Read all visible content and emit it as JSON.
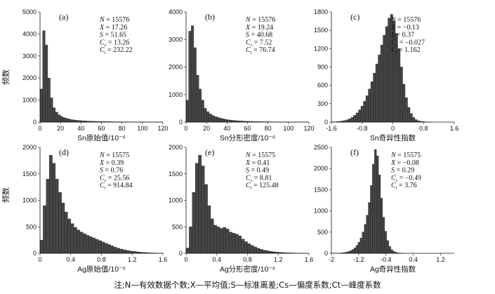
{
  "figure": {
    "ylabel": "频数",
    "note": "注;N—有效数据个数;X—平均值;S—标准离差;Cs—偏度系数;Ct—峰度系数"
  },
  "chart_data": [
    {
      "type": "bar",
      "panel": "(a)",
      "xlabel": "Sn原始值/10⁻⁶",
      "xlim": [
        0,
        120
      ],
      "xticks": [
        0,
        20,
        40,
        60,
        80,
        100,
        120
      ],
      "xticklabels": [
        "0",
        "20",
        "40",
        "60",
        "80",
        "100",
        "120"
      ],
      "ylim": [
        0,
        5000
      ],
      "yticks": [
        0,
        1000,
        2000,
        3000,
        4000,
        5000
      ],
      "bin_width": 2.5,
      "values": [
        1500,
        4150,
        3500,
        2000,
        1100,
        650,
        450,
        330,
        250,
        200,
        165,
        135,
        110,
        95,
        80,
        70,
        60,
        55,
        48,
        42,
        38,
        34,
        30,
        27,
        24,
        22,
        20,
        18,
        16,
        15,
        14,
        13,
        12,
        11,
        10,
        9,
        8,
        8,
        7,
        7,
        6,
        6,
        5,
        5,
        5,
        4,
        4,
        4
      ],
      "stats": {
        "N": "15576",
        "X": "17.26",
        "S": "51.65",
        "Cs": "13.26",
        "Ct": "232.22"
      }
    },
    {
      "type": "bar",
      "panel": "(b)",
      "xlabel": "Sn分形密度/10⁻⁶",
      "xlim": [
        0,
        120
      ],
      "xticks": [
        0,
        20,
        40,
        60,
        80,
        100,
        120
      ],
      "xticklabels": [
        "0",
        "20",
        "40",
        "60",
        "80",
        "100",
        "120"
      ],
      "ylim": [
        0,
        4000
      ],
      "yticks": [
        0,
        1000,
        2000,
        3000,
        4000
      ],
      "bin_width": 2.5,
      "values": [
        800,
        3300,
        3500,
        2700,
        1700,
        1200,
        800,
        500,
        380,
        300,
        240,
        200,
        170,
        140,
        120,
        100,
        85,
        72,
        62,
        54,
        47,
        41,
        36,
        32,
        28,
        25,
        22,
        20,
        18,
        16,
        14,
        13,
        12,
        11,
        10,
        9,
        8,
        8,
        7,
        7,
        6,
        6,
        5,
        5,
        5,
        4,
        4,
        4
      ],
      "stats": {
        "N": "15576",
        "X": "19.24",
        "S": "40.68",
        "Cs": "7.52",
        "Ct": "76.74"
      }
    },
    {
      "type": "bar",
      "panel": "(c)",
      "xlabel": "Sn奇异性指数",
      "xlim": [
        -1.6,
        1.6
      ],
      "xticks": [
        -1.6,
        -0.8,
        0,
        0.8,
        1.6
      ],
      "xticklabels": [
        "-1.6",
        "-0.8",
        "0",
        "0.8",
        "1.6"
      ],
      "ylim": [
        0,
        1800
      ],
      "yticks": [
        0,
        300,
        600,
        900,
        1200,
        1500,
        1800
      ],
      "bin_width": 0.064,
      "values": [
        3,
        5,
        8,
        12,
        18,
        26,
        38,
        55,
        80,
        110,
        150,
        200,
        260,
        340,
        430,
        540,
        660,
        800,
        950,
        1100,
        1260,
        1420,
        1560,
        1700,
        1760,
        1650,
        1450,
        1200,
        900,
        620,
        400,
        240,
        140,
        75,
        40,
        22,
        12,
        7,
        4,
        3,
        2
      ],
      "stats": {
        "N": "15576",
        "X": "−0.13",
        "S": "0.37",
        "Cs": "−0.027",
        "Ct": "1.162"
      }
    },
    {
      "type": "bar",
      "panel": "(d)",
      "xlabel": "Ag原始值/10⁻⁶",
      "xlim": [
        0,
        1.6
      ],
      "xticks": [
        0,
        0.4,
        0.8,
        1.2,
        1.6
      ],
      "xticklabels": [
        "0",
        "0.4",
        "0.8",
        "1.2",
        "1.6"
      ],
      "ylim": [
        0,
        2000
      ],
      "yticks": [
        0,
        500,
        1000,
        1500,
        2000
      ],
      "bin_width": 0.04,
      "values": [
        250,
        900,
        1400,
        1850,
        1700,
        1400,
        1150,
        950,
        780,
        650,
        560,
        490,
        440,
        400,
        370,
        340,
        315,
        290,
        265,
        240,
        215,
        190,
        165,
        140,
        115,
        95,
        80,
        66,
        54,
        44,
        36,
        29,
        23,
        18,
        14,
        10,
        8,
        6,
        4,
        3
      ],
      "stats": {
        "N": "15575",
        "X": "0.39",
        "S": "0.76",
        "Cs": "25.56",
        "Ct": "914.84"
      }
    },
    {
      "type": "bar",
      "panel": "(e)",
      "xlabel": "Ag分形密度/10⁻⁶",
      "xlim": [
        0,
        1.6
      ],
      "xticks": [
        0,
        0.4,
        0.8,
        1.2,
        1.6
      ],
      "xticklabels": [
        "0",
        "0.4",
        "0.8",
        "1.2",
        "1.6"
      ],
      "ylim": [
        0,
        2000
      ],
      "yticks": [
        0,
        500,
        1000,
        1500,
        2000
      ],
      "bin_width": 0.04,
      "values": [
        100,
        500,
        1150,
        1700,
        1850,
        1650,
        1300,
        900,
        650,
        530,
        500,
        470,
        490,
        460,
        400,
        380,
        360,
        330,
        270,
        220,
        180,
        150,
        120,
        95,
        75,
        60,
        48,
        38,
        30,
        24,
        19,
        15,
        12,
        9,
        7,
        6,
        5,
        4,
        3,
        2
      ],
      "stats": {
        "N": "15575",
        "X": "0.41",
        "S": "0.49",
        "Cs": "8.81",
        "Ct": "125.48"
      }
    },
    {
      "type": "bar",
      "panel": "(f)",
      "xlabel": "Ag奇异性指数",
      "xlim": [
        -2.0,
        1.6
      ],
      "xticks": [
        -2.0,
        -1.2,
        -0.4,
        0.4,
        1.2
      ],
      "xticklabels": [
        "-2",
        "-1.2",
        "-0.4",
        "0.4",
        "1.2"
      ],
      "ylim": [
        0,
        2500
      ],
      "yticks": [
        0,
        500,
        1000,
        1500,
        2000,
        2500
      ],
      "bin_width": 0.06,
      "values": [
        1,
        2,
        3,
        5,
        8,
        12,
        18,
        28,
        42,
        62,
        90,
        130,
        185,
        260,
        360,
        500,
        680,
        900,
        1200,
        1600,
        2100,
        2450,
        2300,
        1850,
        1300,
        850,
        520,
        300,
        160,
        85,
        45,
        24,
        13,
        7,
        4,
        2
      ],
      "stats": {
        "N": "15575",
        "X": "−0.08",
        "S": "0.29",
        "Cs": "−0.49",
        "Ct": "3.76"
      }
    }
  ]
}
